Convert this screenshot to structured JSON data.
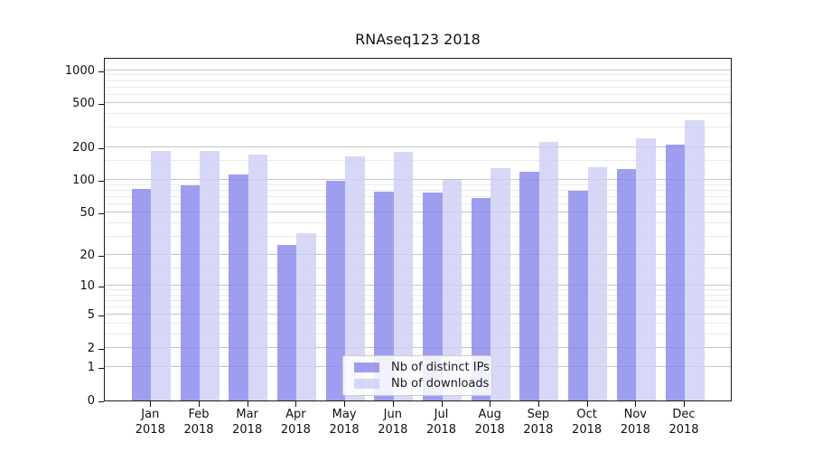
{
  "title": "RNAseq123 2018",
  "colors": {
    "ips": "#8686ee",
    "downloads": "#cdcdf6",
    "bar_alpha": 0.8,
    "grid_major": "#c6c6c6",
    "grid_minor": "#ebebeb",
    "axis": "#111111"
  },
  "legend": {
    "items": [
      {
        "label": "Nb of distinct IPs",
        "series_key": "ips"
      },
      {
        "label": "Nb of downloads",
        "series_key": "downloads"
      }
    ]
  },
  "chart_data": {
    "type": "bar",
    "title": "RNAseq123 2018",
    "categories": [
      "Jan 2018",
      "Feb 2018",
      "Mar 2018",
      "Apr 2018",
      "May 2018",
      "Jun 2018",
      "Jul 2018",
      "Aug 2018",
      "Sep 2018",
      "Oct 2018",
      "Nov 2018",
      "Dec 2018"
    ],
    "series": [
      {
        "name": "Nb of distinct IPs",
        "values": [
          83,
          89,
          113,
          25,
          99,
          78,
          76,
          68,
          119,
          79,
          127,
          210
        ]
      },
      {
        "name": "Nb of downloads",
        "values": [
          186,
          185,
          170,
          32,
          165,
          180,
          101,
          128,
          222,
          130,
          240,
          355
        ]
      }
    ],
    "xlabel": "",
    "ylabel": "",
    "yscale": "log10(value+1)",
    "ylim": [
      0,
      1325
    ],
    "y_major_ticks": [
      0,
      1,
      2,
      5,
      10,
      20,
      50,
      100,
      200,
      500,
      1000
    ],
    "y_minor_gridlines": [
      3,
      4,
      6,
      7,
      8,
      9,
      15,
      30,
      40,
      60,
      70,
      80,
      90,
      150,
      300,
      400,
      600,
      700,
      800,
      900
    ],
    "grid": true,
    "legend_position": "lower center"
  }
}
